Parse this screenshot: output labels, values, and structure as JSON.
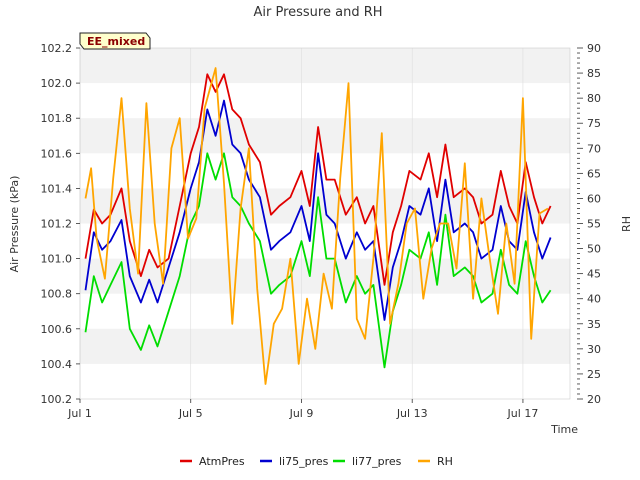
{
  "chart_data": {
    "type": "line",
    "title": "Air Pressure and RH",
    "badge": "EE_mixed",
    "xlabel": "Time",
    "ylabel": "Air Pressure (kPa)",
    "y2label": "RH",
    "x_ticks": [
      {
        "day": 1,
        "label": "Jul 1"
      },
      {
        "day": 5,
        "label": "Jul 5"
      },
      {
        "day": 9,
        "label": "Jul 9"
      },
      {
        "day": 13,
        "label": "Jul 13"
      },
      {
        "day": 17,
        "label": "Jul 17"
      }
    ],
    "xlim": [
      1,
      18.7
    ],
    "ylim": [
      100.2,
      102.2
    ],
    "y_ticks": [
      "100.2",
      "100.4",
      "100.6",
      "100.8",
      "101.0",
      "101.2",
      "101.4",
      "101.6",
      "101.8",
      "102.0",
      "102.2"
    ],
    "y2lim": [
      20,
      90
    ],
    "y2_ticks": [
      "20",
      "25",
      "30",
      "35",
      "40",
      "45",
      "50",
      "55",
      "60",
      "65",
      "70",
      "75",
      "80",
      "85",
      "90"
    ],
    "grid": "horizontal bands",
    "legend_position": "bottom",
    "series": [
      {
        "name": "AtmPres",
        "color": "#e00000",
        "axis": "left",
        "x": [
          1.2,
          1.5,
          1.8,
          2.1,
          2.5,
          2.8,
          3.2,
          3.5,
          3.8,
          4.2,
          4.6,
          5.0,
          5.3,
          5.6,
          5.9,
          6.2,
          6.5,
          6.8,
          7.1,
          7.5,
          7.9,
          8.2,
          8.6,
          9.0,
          9.3,
          9.6,
          9.9,
          10.2,
          10.6,
          11.0,
          11.3,
          11.6,
          12.0,
          12.3,
          12.6,
          12.9,
          13.3,
          13.6,
          13.9,
          14.2,
          14.5,
          14.9,
          15.2,
          15.5,
          15.9,
          16.2,
          16.5,
          16.8,
          17.1,
          17.4,
          17.7,
          18.0
        ],
        "y": [
          101.0,
          101.28,
          101.2,
          101.25,
          101.4,
          101.1,
          100.9,
          101.05,
          100.95,
          101.0,
          101.3,
          101.6,
          101.75,
          102.05,
          101.95,
          102.05,
          101.85,
          101.8,
          101.65,
          101.55,
          101.25,
          101.3,
          101.35,
          101.5,
          101.3,
          101.75,
          101.45,
          101.45,
          101.25,
          101.35,
          101.2,
          101.3,
          100.85,
          101.15,
          101.3,
          101.5,
          101.45,
          101.6,
          101.35,
          101.65,
          101.35,
          101.4,
          101.35,
          101.2,
          101.25,
          101.5,
          101.3,
          101.2,
          101.55,
          101.35,
          101.2,
          101.3
        ]
      },
      {
        "name": "li75_pres",
        "color": "#0000d0",
        "axis": "left",
        "x": [
          1.2,
          1.5,
          1.8,
          2.1,
          2.5,
          2.8,
          3.2,
          3.5,
          3.8,
          4.2,
          4.6,
          5.0,
          5.3,
          5.6,
          5.9,
          6.2,
          6.5,
          6.8,
          7.1,
          7.5,
          7.9,
          8.2,
          8.6,
          9.0,
          9.3,
          9.6,
          9.9,
          10.2,
          10.6,
          11.0,
          11.3,
          11.6,
          12.0,
          12.3,
          12.6,
          12.9,
          13.3,
          13.6,
          13.9,
          14.2,
          14.5,
          14.9,
          15.2,
          15.5,
          15.9,
          16.2,
          16.5,
          16.8,
          17.1,
          17.4,
          17.7,
          18.0
        ],
        "y": [
          100.82,
          101.15,
          101.05,
          101.1,
          101.22,
          100.9,
          100.75,
          100.88,
          100.75,
          100.95,
          101.15,
          101.4,
          101.55,
          101.85,
          101.7,
          101.9,
          101.65,
          101.6,
          101.45,
          101.35,
          101.05,
          101.1,
          101.15,
          101.3,
          101.1,
          101.6,
          101.25,
          101.2,
          101.0,
          101.15,
          101.05,
          101.1,
          100.65,
          100.95,
          101.1,
          101.3,
          101.25,
          101.4,
          101.1,
          101.45,
          101.15,
          101.2,
          101.15,
          101.0,
          101.05,
          101.3,
          101.1,
          101.05,
          101.38,
          101.15,
          101.0,
          101.12
        ]
      },
      {
        "name": "li77_pres",
        "color": "#00dd00",
        "axis": "left",
        "x": [
          1.2,
          1.5,
          1.8,
          2.1,
          2.5,
          2.8,
          3.2,
          3.5,
          3.8,
          4.2,
          4.6,
          5.0,
          5.3,
          5.6,
          5.9,
          6.2,
          6.5,
          6.8,
          7.1,
          7.5,
          7.9,
          8.2,
          8.6,
          9.0,
          9.3,
          9.6,
          9.9,
          10.2,
          10.6,
          11.0,
          11.3,
          11.6,
          12.0,
          12.3,
          12.6,
          12.9,
          13.3,
          13.6,
          13.9,
          14.2,
          14.5,
          14.9,
          15.2,
          15.5,
          15.9,
          16.2,
          16.5,
          16.8,
          17.1,
          17.4,
          17.7,
          18.0
        ],
        "y": [
          100.58,
          100.9,
          100.75,
          100.85,
          100.98,
          100.6,
          100.48,
          100.62,
          100.5,
          100.7,
          100.9,
          101.2,
          101.3,
          101.6,
          101.45,
          101.6,
          101.35,
          101.3,
          101.2,
          101.1,
          100.8,
          100.85,
          100.9,
          101.1,
          100.9,
          101.35,
          101.0,
          101.0,
          100.75,
          100.9,
          100.8,
          100.85,
          100.38,
          100.7,
          100.85,
          101.05,
          101.0,
          101.15,
          100.85,
          101.25,
          100.9,
          100.95,
          100.9,
          100.75,
          100.8,
          101.05,
          100.85,
          100.8,
          101.1,
          100.9,
          100.75,
          100.82
        ]
      },
      {
        "name": "RH",
        "color": "#ffa500",
        "axis": "right",
        "x": [
          1.2,
          1.4,
          1.6,
          1.9,
          2.2,
          2.5,
          2.8,
          3.1,
          3.4,
          3.7,
          4.0,
          4.3,
          4.6,
          4.9,
          5.2,
          5.5,
          5.9,
          6.2,
          6.5,
          6.8,
          7.1,
          7.4,
          7.7,
          8.0,
          8.3,
          8.6,
          8.9,
          9.2,
          9.5,
          9.8,
          10.1,
          10.4,
          10.7,
          11.0,
          11.3,
          11.6,
          11.9,
          12.2,
          12.5,
          12.8,
          13.1,
          13.4,
          13.7,
          14.0,
          14.3,
          14.6,
          14.9,
          15.2,
          15.5,
          15.8,
          16.1,
          16.4,
          16.7,
          17.0,
          17.3,
          17.6,
          17.9
        ],
        "y": [
          60,
          66,
          52,
          44,
          64,
          80,
          58,
          45,
          79,
          55,
          43,
          70,
          76,
          52,
          56,
          78,
          86,
          63,
          35,
          58,
          70,
          42,
          23,
          35,
          38,
          48,
          27,
          40,
          30,
          45,
          38,
          64,
          83,
          36,
          32,
          48,
          73,
          35,
          43,
          55,
          58,
          40,
          50,
          55,
          55,
          46,
          67,
          40,
          60,
          48,
          37,
          55,
          43,
          80,
          32,
          57,
          58
        ]
      }
    ]
  }
}
